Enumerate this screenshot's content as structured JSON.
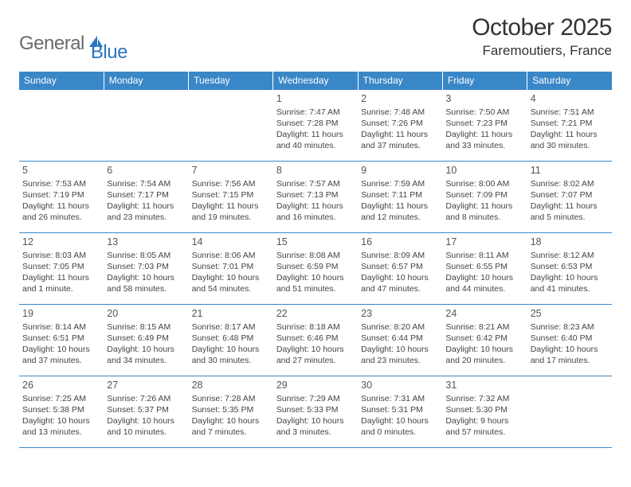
{
  "brand": {
    "part1": "General",
    "part2": "Blue"
  },
  "title": "October 2025",
  "location": "Faremoutiers, France",
  "colors": {
    "header_bg": "#3a87c8",
    "header_text": "#ffffff",
    "rule": "#3a87c8",
    "logo_gray": "#6a6a6a",
    "logo_blue": "#2a74c0",
    "text": "#333333",
    "cell_text": "#444444"
  },
  "day_headers": [
    "Sunday",
    "Monday",
    "Tuesday",
    "Wednesday",
    "Thursday",
    "Friday",
    "Saturday"
  ],
  "weeks": [
    [
      {
        "num": "",
        "lines": []
      },
      {
        "num": "",
        "lines": []
      },
      {
        "num": "",
        "lines": []
      },
      {
        "num": "1",
        "lines": [
          "Sunrise: 7:47 AM",
          "Sunset: 7:28 PM",
          "Daylight: 11 hours and 40 minutes."
        ]
      },
      {
        "num": "2",
        "lines": [
          "Sunrise: 7:48 AM",
          "Sunset: 7:26 PM",
          "Daylight: 11 hours and 37 minutes."
        ]
      },
      {
        "num": "3",
        "lines": [
          "Sunrise: 7:50 AM",
          "Sunset: 7:23 PM",
          "Daylight: 11 hours and 33 minutes."
        ]
      },
      {
        "num": "4",
        "lines": [
          "Sunrise: 7:51 AM",
          "Sunset: 7:21 PM",
          "Daylight: 11 hours and 30 minutes."
        ]
      }
    ],
    [
      {
        "num": "5",
        "lines": [
          "Sunrise: 7:53 AM",
          "Sunset: 7:19 PM",
          "Daylight: 11 hours and 26 minutes."
        ]
      },
      {
        "num": "6",
        "lines": [
          "Sunrise: 7:54 AM",
          "Sunset: 7:17 PM",
          "Daylight: 11 hours and 23 minutes."
        ]
      },
      {
        "num": "7",
        "lines": [
          "Sunrise: 7:56 AM",
          "Sunset: 7:15 PM",
          "Daylight: 11 hours and 19 minutes."
        ]
      },
      {
        "num": "8",
        "lines": [
          "Sunrise: 7:57 AM",
          "Sunset: 7:13 PM",
          "Daylight: 11 hours and 16 minutes."
        ]
      },
      {
        "num": "9",
        "lines": [
          "Sunrise: 7:59 AM",
          "Sunset: 7:11 PM",
          "Daylight: 11 hours and 12 minutes."
        ]
      },
      {
        "num": "10",
        "lines": [
          "Sunrise: 8:00 AM",
          "Sunset: 7:09 PM",
          "Daylight: 11 hours and 8 minutes."
        ]
      },
      {
        "num": "11",
        "lines": [
          "Sunrise: 8:02 AM",
          "Sunset: 7:07 PM",
          "Daylight: 11 hours and 5 minutes."
        ]
      }
    ],
    [
      {
        "num": "12",
        "lines": [
          "Sunrise: 8:03 AM",
          "Sunset: 7:05 PM",
          "Daylight: 11 hours and 1 minute."
        ]
      },
      {
        "num": "13",
        "lines": [
          "Sunrise: 8:05 AM",
          "Sunset: 7:03 PM",
          "Daylight: 10 hours and 58 minutes."
        ]
      },
      {
        "num": "14",
        "lines": [
          "Sunrise: 8:06 AM",
          "Sunset: 7:01 PM",
          "Daylight: 10 hours and 54 minutes."
        ]
      },
      {
        "num": "15",
        "lines": [
          "Sunrise: 8:08 AM",
          "Sunset: 6:59 PM",
          "Daylight: 10 hours and 51 minutes."
        ]
      },
      {
        "num": "16",
        "lines": [
          "Sunrise: 8:09 AM",
          "Sunset: 6:57 PM",
          "Daylight: 10 hours and 47 minutes."
        ]
      },
      {
        "num": "17",
        "lines": [
          "Sunrise: 8:11 AM",
          "Sunset: 6:55 PM",
          "Daylight: 10 hours and 44 minutes."
        ]
      },
      {
        "num": "18",
        "lines": [
          "Sunrise: 8:12 AM",
          "Sunset: 6:53 PM",
          "Daylight: 10 hours and 41 minutes."
        ]
      }
    ],
    [
      {
        "num": "19",
        "lines": [
          "Sunrise: 8:14 AM",
          "Sunset: 6:51 PM",
          "Daylight: 10 hours and 37 minutes."
        ]
      },
      {
        "num": "20",
        "lines": [
          "Sunrise: 8:15 AM",
          "Sunset: 6:49 PM",
          "Daylight: 10 hours and 34 minutes."
        ]
      },
      {
        "num": "21",
        "lines": [
          "Sunrise: 8:17 AM",
          "Sunset: 6:48 PM",
          "Daylight: 10 hours and 30 minutes."
        ]
      },
      {
        "num": "22",
        "lines": [
          "Sunrise: 8:18 AM",
          "Sunset: 6:46 PM",
          "Daylight: 10 hours and 27 minutes."
        ]
      },
      {
        "num": "23",
        "lines": [
          "Sunrise: 8:20 AM",
          "Sunset: 6:44 PM",
          "Daylight: 10 hours and 23 minutes."
        ]
      },
      {
        "num": "24",
        "lines": [
          "Sunrise: 8:21 AM",
          "Sunset: 6:42 PM",
          "Daylight: 10 hours and 20 minutes."
        ]
      },
      {
        "num": "25",
        "lines": [
          "Sunrise: 8:23 AM",
          "Sunset: 6:40 PM",
          "Daylight: 10 hours and 17 minutes."
        ]
      }
    ],
    [
      {
        "num": "26",
        "lines": [
          "Sunrise: 7:25 AM",
          "Sunset: 5:38 PM",
          "Daylight: 10 hours and 13 minutes."
        ]
      },
      {
        "num": "27",
        "lines": [
          "Sunrise: 7:26 AM",
          "Sunset: 5:37 PM",
          "Daylight: 10 hours and 10 minutes."
        ]
      },
      {
        "num": "28",
        "lines": [
          "Sunrise: 7:28 AM",
          "Sunset: 5:35 PM",
          "Daylight: 10 hours and 7 minutes."
        ]
      },
      {
        "num": "29",
        "lines": [
          "Sunrise: 7:29 AM",
          "Sunset: 5:33 PM",
          "Daylight: 10 hours and 3 minutes."
        ]
      },
      {
        "num": "30",
        "lines": [
          "Sunrise: 7:31 AM",
          "Sunset: 5:31 PM",
          "Daylight: 10 hours and 0 minutes."
        ]
      },
      {
        "num": "31",
        "lines": [
          "Sunrise: 7:32 AM",
          "Sunset: 5:30 PM",
          "Daylight: 9 hours and 57 minutes."
        ]
      },
      {
        "num": "",
        "lines": []
      }
    ]
  ]
}
